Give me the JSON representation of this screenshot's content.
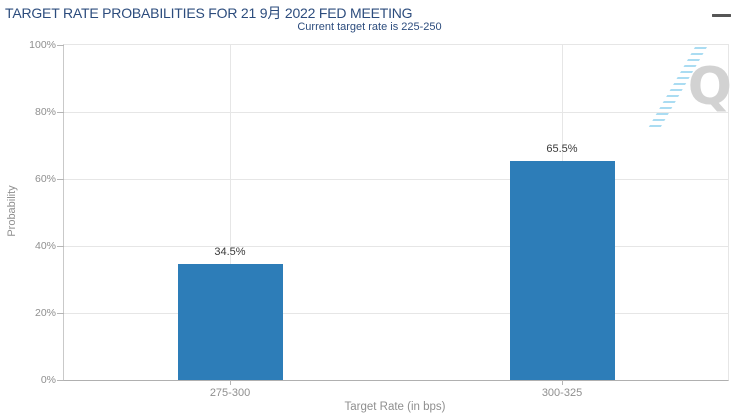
{
  "chart_data": {
    "type": "bar",
    "title": "TARGET RATE PROBABILITIES FOR 21 9月 2022 FED MEETING",
    "subtitle": "Current target rate is 225-250",
    "categories": [
      "275-300",
      "300-325"
    ],
    "values": [
      34.5,
      65.5
    ],
    "value_labels": [
      "34.5%",
      "65.5%"
    ],
    "xlabel": "Target Rate (in bps)",
    "ylabel": "Probability",
    "ylim": [
      0,
      100
    ],
    "yticks": [
      0,
      20,
      40,
      60,
      80,
      100
    ],
    "ytick_labels": [
      "0%",
      "20%",
      "40%",
      "60%",
      "80%",
      "100%"
    ],
    "grid": true,
    "legend": "none"
  },
  "colors": {
    "bar_blue": "#2d7db8",
    "title_navy": "#2c4c7d",
    "axis_gray": "#8f8f8f",
    "watermark_gray": "#d2d2d2",
    "watermark_blue": "#aadcf2"
  },
  "icons": {
    "menu": "hamburger-menu",
    "watermark": "quandl-q-logo"
  },
  "watermark": {
    "letter": "Q"
  }
}
